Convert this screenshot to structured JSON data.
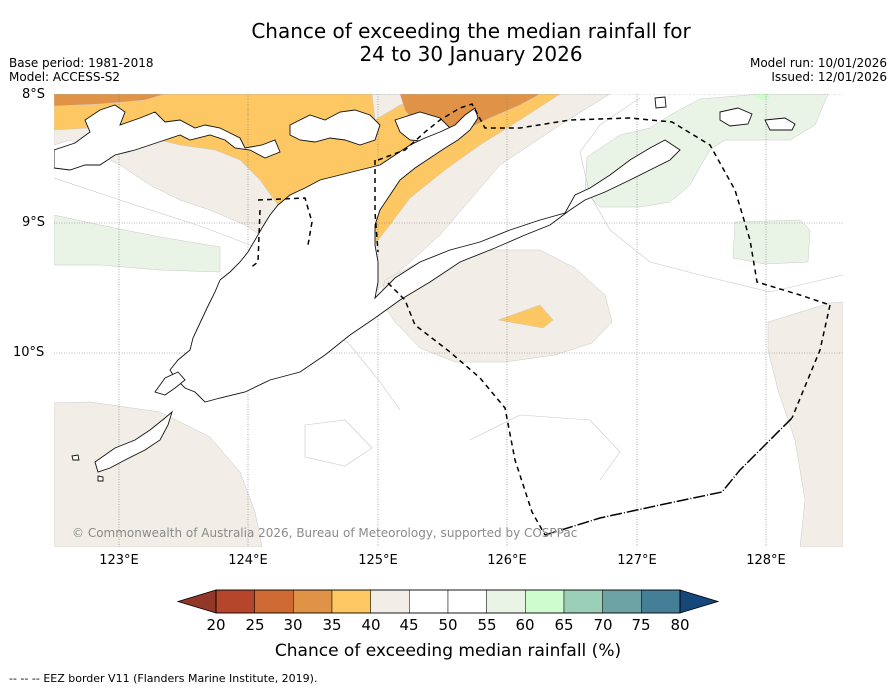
{
  "header": {
    "title_line1": "Chance of exceeding the median rainfall for",
    "title_line2": "24 to 30 January 2026",
    "base_period": "Base period: 1981-2018",
    "model": "Model: ACCESS-S2",
    "model_run": "Model run: 10/01/2026",
    "issued": "Issued: 12/01/2026"
  },
  "map": {
    "copyright": "© Commonwealth of Australia 2026, Bureau of Meteorology, supported by COSPPac",
    "lat_labels": [
      "8°S",
      "9°S",
      "10°S"
    ],
    "lon_labels": [
      "123°E",
      "124°E",
      "125°E",
      "126°E",
      "127°E",
      "128°E"
    ]
  },
  "colorbar": {
    "title": "Chance of exceeding median rainfall (%)",
    "ticks": [
      "20",
      "25",
      "30",
      "35",
      "40",
      "45",
      "50",
      "55",
      "60",
      "65",
      "70",
      "75",
      "80"
    ],
    "colors": [
      "#b5462b",
      "#cf6a35",
      "#e09346",
      "#fdc863",
      "#f2eee7",
      "#ffffff",
      "#ffffff",
      "#e9f4e6",
      "#cefcce",
      "#9bcfb7",
      "#6ea3a6",
      "#457e97"
    ],
    "low_arrow_color": "#933729",
    "high_arrow_color": "#15477b"
  },
  "footer": {
    "legend_symbol": "--  --  --",
    "legend_text": "EEZ border V11 (Flanders Marine Institute, 2019)."
  }
}
